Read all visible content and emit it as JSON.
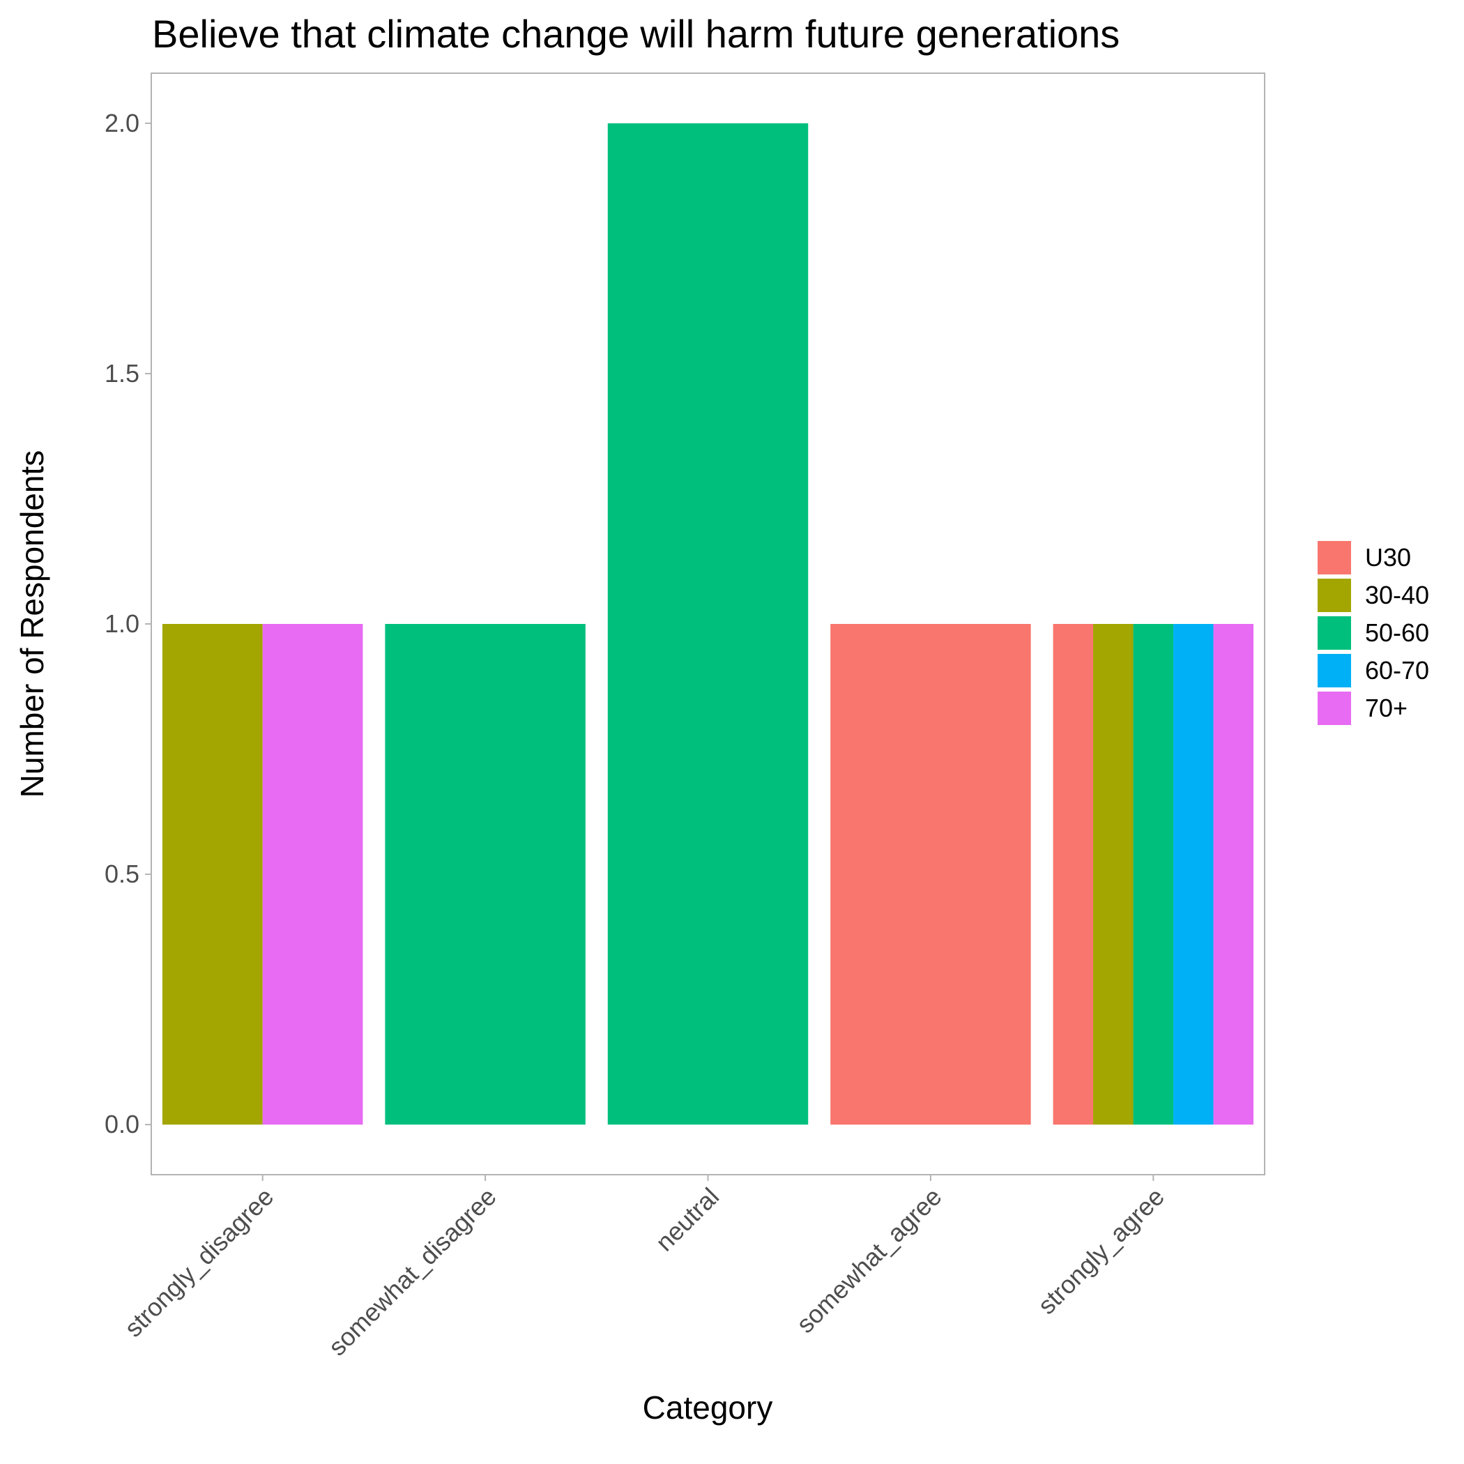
{
  "chart_data": {
    "type": "bar",
    "title": "Believe that climate change will harm future generations",
    "xlabel": "Category",
    "ylabel": "Number of Respondents",
    "categories": [
      "strongly_disagree",
      "somewhat_disagree",
      "neutral",
      "somewhat_agree",
      "strongly_agree"
    ],
    "series": [
      {
        "name": "U30",
        "color": "#F8766D",
        "values": [
          0,
          0,
          0,
          1,
          1
        ]
      },
      {
        "name": "30-40",
        "color": "#A3A500",
        "values": [
          1,
          0,
          0,
          0,
          1
        ]
      },
      {
        "name": "50-60",
        "color": "#00BF7D",
        "values": [
          0,
          1,
          2,
          0,
          1
        ]
      },
      {
        "name": "60-70",
        "color": "#00B0F6",
        "values": [
          0,
          0,
          0,
          0,
          1
        ]
      },
      {
        "name": "70+",
        "color": "#E76BF3",
        "values": [
          1,
          0,
          0,
          0,
          1
        ]
      }
    ],
    "ylim": [
      -0.1,
      2.1
    ],
    "yticks": [
      "0.0",
      "0.5",
      "1.0",
      "1.5",
      "2.0"
    ],
    "ytick_values": [
      0,
      0.5,
      1,
      1.5,
      2
    ],
    "grid": false,
    "legend_position": "right",
    "bar_mode": "dodge"
  }
}
